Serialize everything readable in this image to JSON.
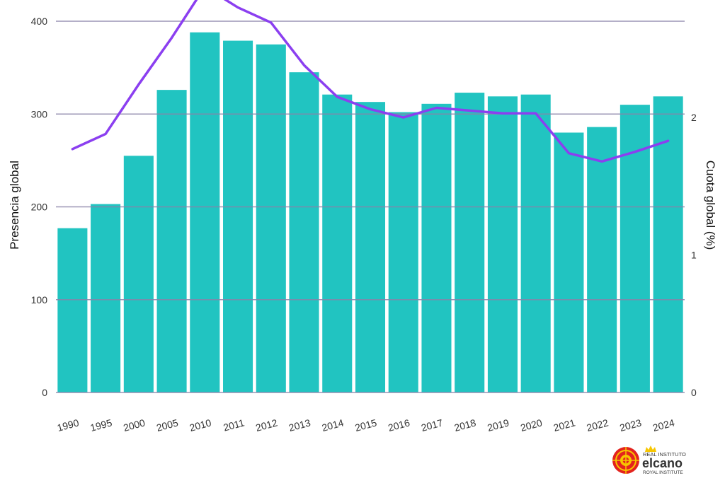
{
  "chart_data": {
    "type": "bar",
    "title": "",
    "categories": [
      "1990",
      "1995",
      "2000",
      "2005",
      "2010",
      "2011",
      "2012",
      "2013",
      "2014",
      "2015",
      "2016",
      "2017",
      "2018",
      "2019",
      "2020",
      "2021",
      "2022",
      "2023",
      "2024"
    ],
    "series": [
      {
        "values": [
          177,
          203,
          255,
          326,
          388,
          379,
          375,
          345,
          321,
          313,
          302,
          311,
          323,
          319,
          321,
          280,
          286,
          310,
          319
        ],
        "type": "bar",
        "axis": "left"
      },
      {
        "values": [
          1.77,
          1.88,
          2.24,
          2.58,
          2.95,
          2.8,
          2.69,
          2.38,
          2.15,
          2.06,
          2.0,
          2.07,
          2.05,
          2.03,
          2.03,
          1.74,
          1.68,
          1.75,
          1.83
        ],
        "type": "line",
        "axis": "right"
      }
    ],
    "ylabel": "Presencia global",
    "y2label": "Cuota global (%)",
    "ylim": [
      0,
      400
    ],
    "y2lim": [
      0,
      2.7
    ],
    "yticks": [
      "0",
      "100",
      "200",
      "300",
      "400"
    ],
    "y2ticks": [
      "0",
      "1",
      "2"
    ],
    "grid": true,
    "legend": "none"
  },
  "logo": {
    "line1": "REAL INSTITUTO",
    "line2": "elcano",
    "line3": "ROYAL INSTITUTE"
  },
  "colors": {
    "bar": "#21c4c1",
    "line": "#8b3ff0",
    "grid": "#8a82a8",
    "logo_red": "#e3231e",
    "logo_yellow": "#f7c600"
  }
}
